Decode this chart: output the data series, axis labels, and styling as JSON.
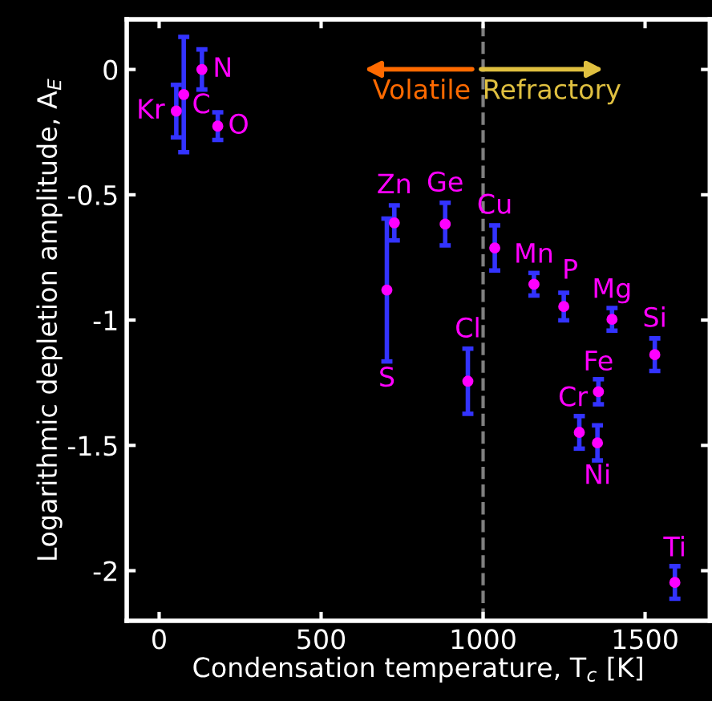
{
  "chart_data": {
    "type": "scatter",
    "xlabel": "Condensation temperature, T$_{c}$ [K]",
    "ylabel": "Logarithmic depletion amplitude, A$_{E}$",
    "x": [
      53,
      76,
      132,
      181,
      726,
      703,
      883,
      1036,
      1157,
      1249,
      1398,
      1530,
      953,
      1356,
      1297,
      1353,
      1592
    ],
    "series": [
      {
        "color": "#ff00ff",
        "values": [
          -0.166,
          -0.1,
          0,
          -0.226,
          -0.612,
          -0.88,
          -0.617,
          -0.712,
          -0.857,
          -0.946,
          -0.997,
          -1.138,
          -1.244,
          -1.286,
          -1.448,
          -1.49,
          -2.047
        ],
        "errors": [
          0.105,
          0.23,
          0.08,
          0.055,
          0.07,
          0.285,
          0.085,
          0.09,
          0.045,
          0.055,
          0.045,
          0.065,
          0.13,
          0.05,
          0.065,
          0.07,
          0.065
        ]
      }
    ],
    "marker": "circle",
    "grid": false,
    "xlim": [
      -100,
      1700
    ],
    "xticks": [
      0,
      500,
      1000,
      1500
    ],
    "ylim": [
      -2.2,
      0.2
    ],
    "yticks": [
      -2,
      -1.5,
      -1,
      -0.5,
      0
    ],
    "ref_lines": [
      {
        "axis": "x",
        "value": 1000,
        "color": "#808080",
        "line_style": "dashed"
      }
    ],
    "annotations": [
      {
        "text": "Kr",
        "x": 53,
        "y": -0.166
      },
      {
        "text": "C",
        "x": 76,
        "y": -0.1
      },
      {
        "text": "N",
        "x": 132,
        "y": 0
      },
      {
        "text": "O",
        "x": 181,
        "y": -0.226
      },
      {
        "text": "Zn",
        "x": 726,
        "y": -0.612
      },
      {
        "text": "S",
        "x": 703,
        "y": -1.165
      },
      {
        "text": "Ge",
        "x": 883,
        "y": -0.617
      },
      {
        "text": "Cu",
        "x": 1036,
        "y": -0.712
      },
      {
        "text": "Mn",
        "x": 1157,
        "y": -0.857
      },
      {
        "text": "P",
        "x": 1249,
        "y": -0.946
      },
      {
        "text": "Mg",
        "x": 1398,
        "y": -0.997
      },
      {
        "text": "Si",
        "x": 1530,
        "y": -1.138
      },
      {
        "text": "Cl",
        "x": 953,
        "y": -1.244
      },
      {
        "text": "Fe",
        "x": 1356,
        "y": -1.286
      },
      {
        "text": "Cr",
        "x": 1297,
        "y": -1.448
      },
      {
        "text": "Ni",
        "x": 1353,
        "y": -1.49
      },
      {
        "text": "Ti",
        "x": 1592,
        "y": -2.047
      },
      "Volatile",
      "Refractory"
    ]
  }
}
